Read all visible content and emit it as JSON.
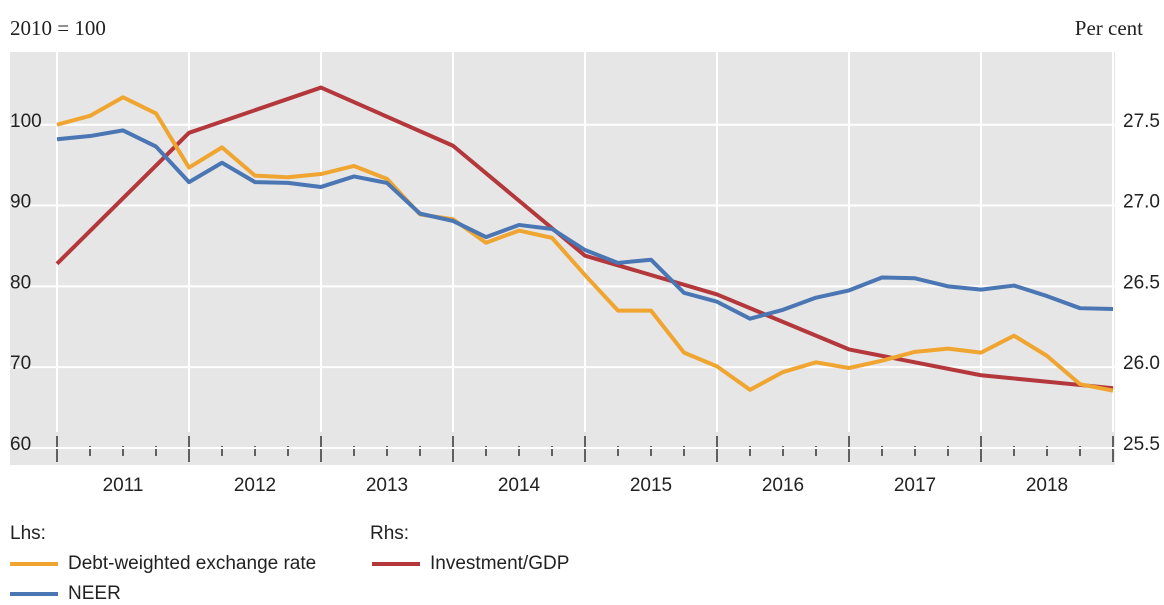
{
  "chart_data": {
    "type": "line",
    "ylabel": "2010 = 100",
    "y2label": "Per cent",
    "legend_titles": [
      "Lhs:",
      "Rhs:"
    ],
    "x": [
      2011,
      2011.25,
      2011.5,
      2011.75,
      2012,
      2012.25,
      2012.5,
      2012.75,
      2013,
      2013.25,
      2013.5,
      2013.75,
      2014,
      2014.25,
      2014.5,
      2014.75,
      2015,
      2015.25,
      2015.5,
      2015.75,
      2016,
      2016.25,
      2016.5,
      2016.75,
      2017,
      2017.25,
      2017.5,
      2017.75,
      2018,
      2018.25,
      2018.5,
      2018.75,
      2019
    ],
    "xlim": [
      2011,
      2019
    ],
    "xticks": [
      {
        "value": 2011.5,
        "label": "2011"
      },
      {
        "value": 2012.5,
        "label": "2012"
      },
      {
        "value": 2013.5,
        "label": "2013"
      },
      {
        "value": 2014.5,
        "label": "2014"
      },
      {
        "value": 2015.5,
        "label": "2015"
      },
      {
        "value": 2016.5,
        "label": "2016"
      },
      {
        "value": 2017.5,
        "label": "2017"
      },
      {
        "value": 2018.5,
        "label": "2018"
      }
    ],
    "ylim": [
      60,
      109
    ],
    "yticks": [
      60,
      70,
      80,
      90,
      100
    ],
    "y2lim": [
      25.5,
      27.95
    ],
    "y2ticks": [
      25.5,
      {
        "value": 26,
        "label": "26.0"
      },
      26.5,
      {
        "value": 27,
        "label": "27.0"
      },
      27.5
    ],
    "grid": true,
    "series": [
      {
        "name": "Debt-weighted exchange rate",
        "color": "#f0a531",
        "axis": "y",
        "values": [
          100.0,
          101.1,
          103.4,
          101.4,
          94.7,
          97.2,
          93.7,
          93.5,
          93.9,
          94.9,
          93.3,
          88.9,
          88.3,
          85.4,
          86.9,
          86.0,
          81.4,
          77.0,
          77.0,
          71.8,
          70.1,
          67.2,
          69.4,
          70.6,
          69.9,
          70.8,
          71.9,
          72.3,
          71.8,
          73.9,
          71.4,
          67.9,
          67.1
        ]
      },
      {
        "name": "NEER",
        "color": "#4a76b4",
        "axis": "y",
        "values": [
          98.2,
          98.6,
          99.3,
          97.3,
          92.9,
          95.3,
          92.9,
          92.8,
          92.3,
          93.6,
          92.8,
          89.0,
          88.1,
          86.1,
          87.6,
          87.1,
          84.5,
          82.9,
          83.3,
          79.2,
          78.1,
          76.0,
          77.1,
          78.6,
          79.5,
          81.1,
          81.0,
          80.0,
          79.6,
          80.1,
          78.8,
          77.3,
          77.2
        ]
      },
      {
        "name": "Investment/GDP",
        "color": "#b3373b",
        "axis": "y2",
        "x": [
          2011,
          2012,
          2013,
          2014,
          2015,
          2016,
          2017,
          2018,
          2019
        ],
        "values": [
          26.64,
          27.45,
          27.73,
          27.37,
          26.69,
          26.45,
          26.11,
          25.95,
          25.87
        ]
      }
    ]
  }
}
